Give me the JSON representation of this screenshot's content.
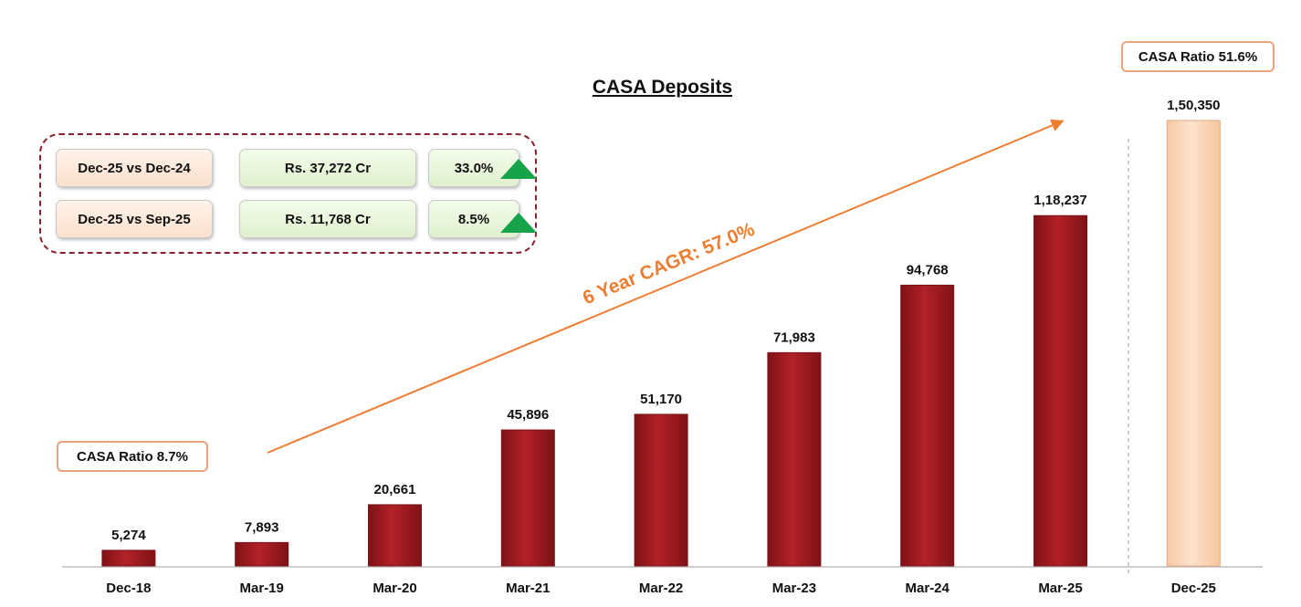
{
  "chart_data": {
    "type": "bar",
    "title": "CASA Deposits",
    "categories": [
      "Dec-18",
      "Mar-19",
      "Mar-20",
      "Mar-21",
      "Mar-22",
      "Mar-23",
      "Mar-24",
      "Mar-25",
      "Dec-25"
    ],
    "values": [
      5274,
      7893,
      20661,
      45896,
      51170,
      71983,
      94768,
      118237,
      150350
    ],
    "value_labels": [
      "5,274",
      "7,893",
      "20,661",
      "45,896",
      "51,170",
      "71,983",
      "94,768",
      "1,18,237",
      "1,50,350"
    ],
    "highlight_last": true,
    "ylim": [
      0,
      150350
    ],
    "grid": false,
    "annotation": "6 Year CAGR: 57.0%"
  },
  "summary": {
    "rows": [
      {
        "period": "Dec-25 vs Dec-24",
        "amount": "Rs. 37,272 Cr",
        "growth": "33.0%"
      },
      {
        "period": "Dec-25 vs Sep-25",
        "amount": "Rs. 11,768 Cr",
        "growth": "8.5%"
      }
    ]
  },
  "ratios": {
    "start": "CASA Ratio 8.7%",
    "end": "CASA Ratio 51.6%"
  },
  "colors": {
    "bar": "#a51c22",
    "highlight_bar": "#fcd5b4",
    "arrow": "#ed7d31",
    "up_arrow": "#16a34a",
    "border": "#8b2130"
  }
}
